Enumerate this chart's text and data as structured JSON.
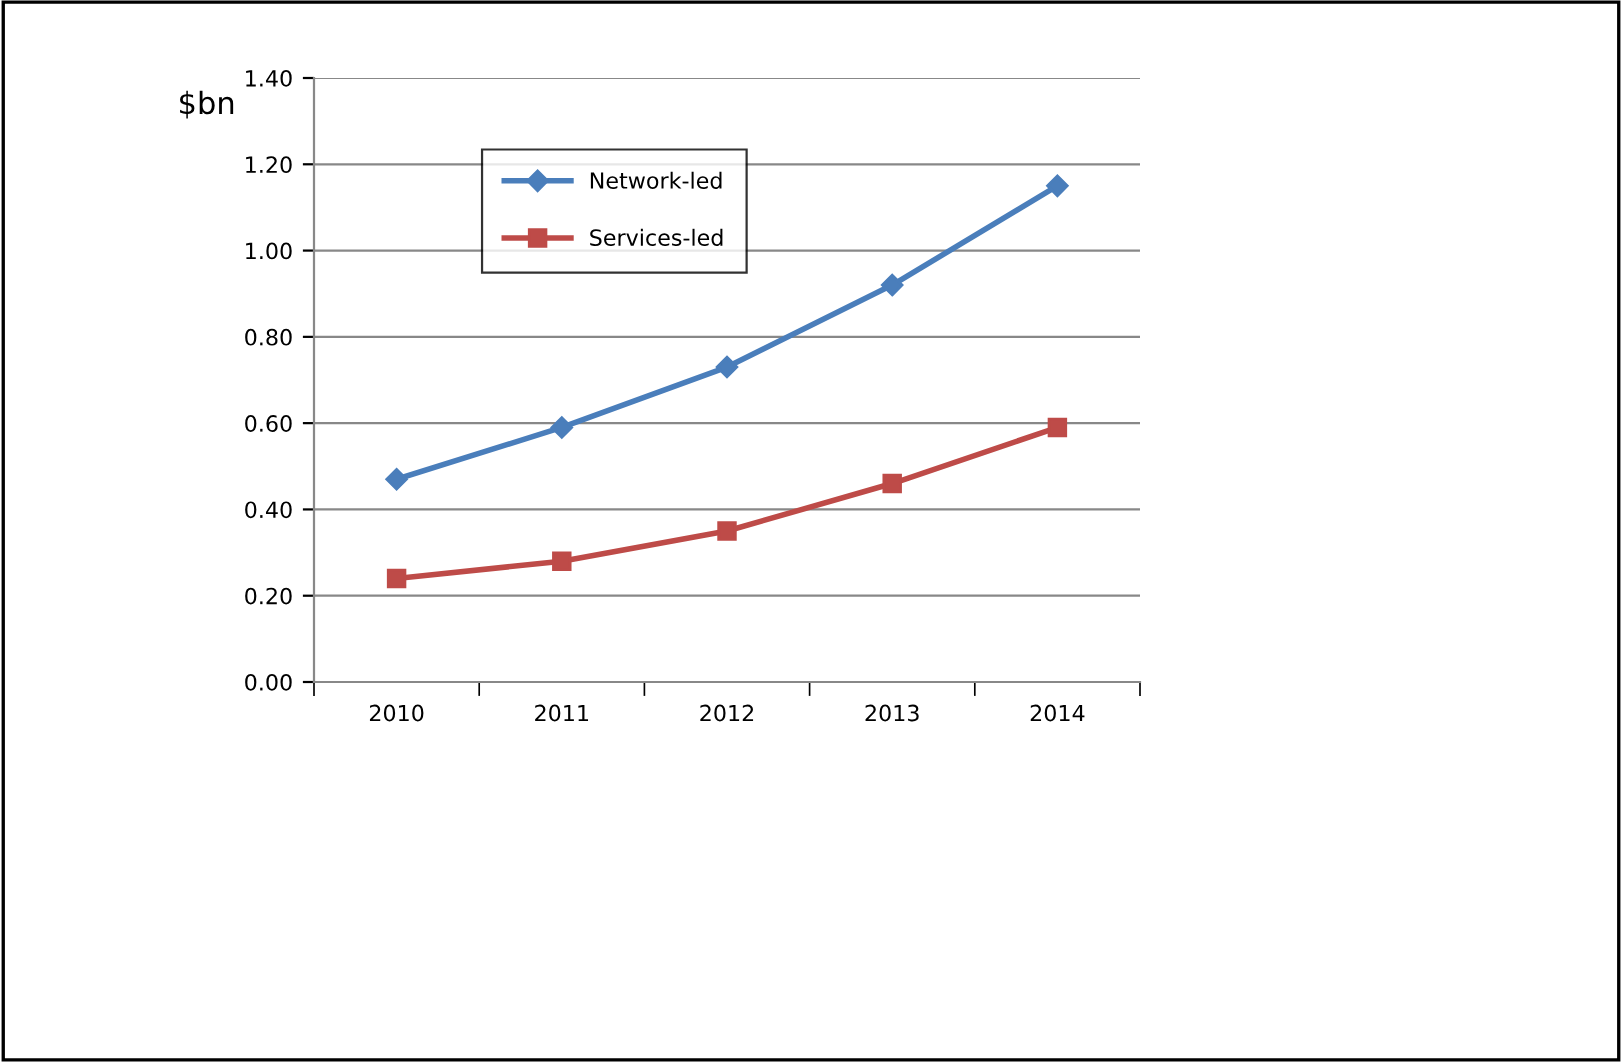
{
  "chart_data": {
    "type": "line",
    "ylabel": "$bn",
    "categories": [
      "2010",
      "2011",
      "2012",
      "2013",
      "2014"
    ],
    "series": [
      {
        "name": "Network-led",
        "color": "#4a7ebb",
        "marker": "diamond",
        "values": [
          0.47,
          0.59,
          0.73,
          0.92,
          1.15
        ]
      },
      {
        "name": "Services-led",
        "color": "#be4b48",
        "marker": "square",
        "values": [
          0.24,
          0.28,
          0.35,
          0.46,
          0.59
        ]
      }
    ],
    "ylim": [
      0,
      1.4
    ],
    "yticks": [
      {
        "value": 0,
        "label": "0.00"
      },
      {
        "value": 0.2,
        "label": "0.20"
      },
      {
        "value": 0.4,
        "label": "0.40"
      },
      {
        "value": 0.6,
        "label": "0.60"
      },
      {
        "value": 0.8,
        "label": "0.80"
      },
      {
        "value": 1.0,
        "label": "1.00"
      },
      {
        "value": 1.2,
        "label": "1.20"
      },
      {
        "value": 1.4,
        "label": "1.40"
      }
    ],
    "grid": "y",
    "legend": "top left",
    "line_style": "solid"
  }
}
